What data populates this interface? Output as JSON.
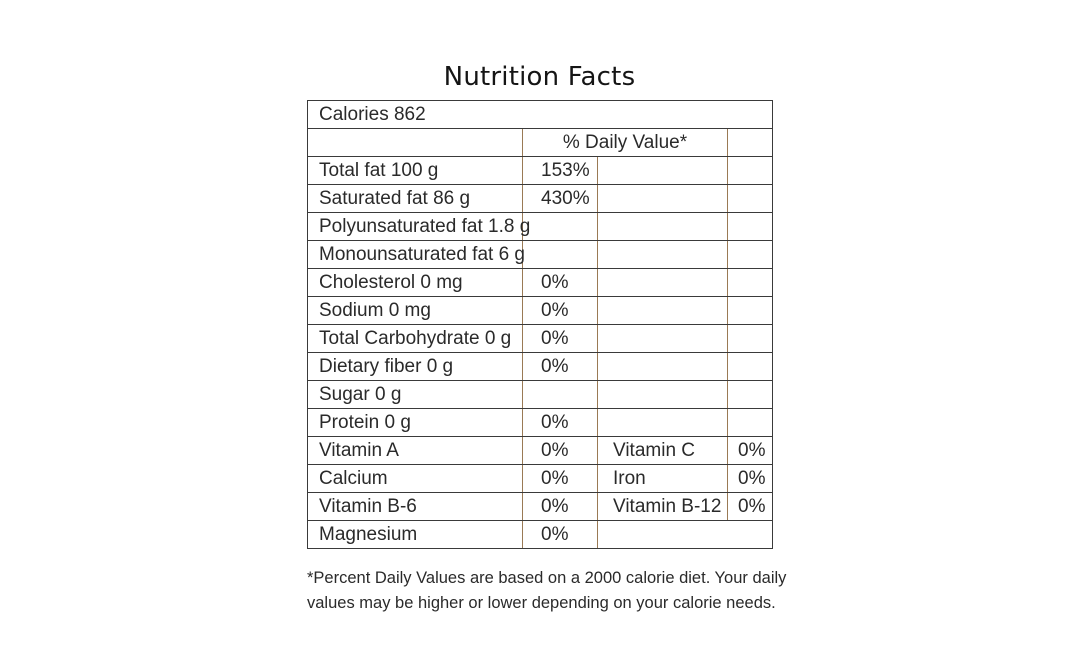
{
  "title": "Nutrition Facts",
  "calories": "Calories 862",
  "daily_value_header": "% Daily Value*",
  "nutrients": [
    {
      "name": "Total fat 100 g",
      "dv": "153%"
    },
    {
      "name": "Saturated fat 86 g",
      "dv": "430%"
    },
    {
      "name": "Polyunsaturated fat 1.8 g",
      "dv": ""
    },
    {
      "name": "Monounsaturated fat 6 g",
      "dv": ""
    },
    {
      "name": "Cholesterol 0 mg",
      "dv": "0%"
    },
    {
      "name": "Sodium 0 mg",
      "dv": "0%"
    },
    {
      "name": "Total Carbohydrate 0 g",
      "dv": "0%"
    },
    {
      "name": "Dietary fiber 0 g",
      "dv": "0%"
    },
    {
      "name": "Sugar 0 g",
      "dv": ""
    },
    {
      "name": "Protein 0 g",
      "dv": "0%"
    }
  ],
  "vitamins": [
    {
      "name": "Vitamin A",
      "dv": "0%",
      "name2": "Vitamin C",
      "dv2": "0%"
    },
    {
      "name": "Calcium",
      "dv": "0%",
      "name2": "Iron",
      "dv2": "0%"
    },
    {
      "name": "Vitamin B-6",
      "dv": "0%",
      "name2": "Vitamin B-12",
      "dv2": "0%"
    },
    {
      "name": "Magnesium",
      "dv": "0%",
      "name2": "",
      "dv2": ""
    }
  ],
  "footnote": {
    "line1": "*Percent Daily Values are based on a 2000 calorie diet. Your daily",
    "line2": "values may be higher or lower depending on your calorie needs."
  }
}
